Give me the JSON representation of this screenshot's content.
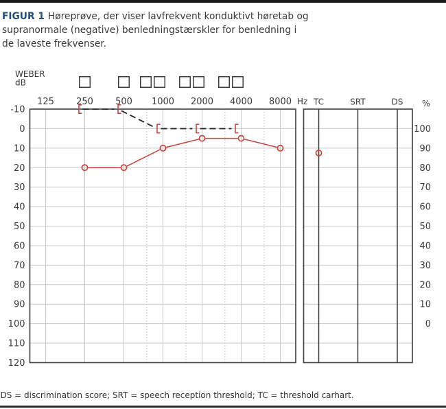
{
  "caption": {
    "label": "FIGUR 1",
    "text": "Høreprøve, der viser lavfrekvent konduktivt høretab og\nsupranormale (negative) benledningstærskler for benledning i\nde laveste frekvenser."
  },
  "footnote": "DS = discrimination score; SRT = speech reception threshold; TC = threshold carhart.",
  "colors": {
    "marker_red": "#c7463e",
    "dash_ink": "#262626",
    "frame": "#3d3d3d",
    "grid": "#c9c9c9",
    "label_ink": "#3a3a3a",
    "caption_label_blue": "#1f4e79"
  },
  "chart_data": {
    "type": "line",
    "title": "audiogram with speech panel",
    "x_axis": {
      "scale": "log2",
      "unit_label": "Hz",
      "ticks": [
        125,
        250,
        500,
        1000,
        2000,
        4000,
        8000
      ],
      "interoctave_dotted": [
        750,
        1500,
        3000,
        6000
      ]
    },
    "y_axis_left": {
      "label": "dB",
      "ticks": [
        -10,
        0,
        10,
        20,
        30,
        40,
        50,
        60,
        70,
        80,
        90,
        100,
        110,
        120
      ]
    },
    "y_axis_right": {
      "label": "%",
      "ticks": [
        100,
        90,
        80,
        70,
        60,
        50,
        40,
        30,
        20,
        10,
        0
      ],
      "note": "100 % aligns with 0 dB, 0 % with 100 dB"
    },
    "weber_row": {
      "label": "WEBER",
      "unit": "dB",
      "boxes": [
        {
          "hz": 250,
          "count": 1
        },
        {
          "hz": 500,
          "count": 1
        },
        {
          "hz": 1000,
          "count": 2
        },
        {
          "hz": 2000,
          "count": 2
        },
        {
          "hz": 4000,
          "count": 2
        }
      ]
    },
    "series": [
      {
        "name": "air conduction",
        "marker": "circle",
        "line_style": "solid",
        "color": "#c7463e",
        "points": [
          [
            250,
            20
          ],
          [
            500,
            20
          ],
          [
            1000,
            10
          ],
          [
            2000,
            5
          ],
          [
            4000,
            5
          ],
          [
            8000,
            10
          ]
        ]
      },
      {
        "name": "bone conduction",
        "marker": "left-bracket",
        "marker_color": "#c7463e",
        "line_style": "dashed",
        "line_color": "#262626",
        "points": [
          [
            250,
            -10
          ],
          [
            500,
            -10
          ],
          [
            1000,
            0
          ],
          [
            2000,
            0
          ],
          [
            4000,
            0
          ]
        ]
      }
    ],
    "speech_panel": {
      "columns": [
        "TC",
        "SRT",
        "DS"
      ],
      "points": [
        {
          "column": "TC",
          "db": 12.5,
          "marker": "circle",
          "color": "#c7463e"
        }
      ]
    }
  }
}
